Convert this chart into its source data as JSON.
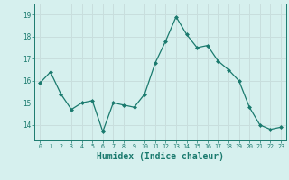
{
  "x": [
    0,
    1,
    2,
    3,
    4,
    5,
    6,
    7,
    8,
    9,
    10,
    11,
    12,
    13,
    14,
    15,
    16,
    17,
    18,
    19,
    20,
    21,
    22,
    23
  ],
  "y": [
    15.9,
    16.4,
    15.4,
    14.7,
    15.0,
    15.1,
    13.7,
    15.0,
    14.9,
    14.8,
    15.4,
    16.8,
    17.8,
    18.9,
    18.1,
    17.5,
    17.6,
    16.9,
    16.5,
    16.0,
    14.8,
    14.0,
    13.8,
    13.9
  ],
  "line_color": "#1a7a6e",
  "marker": "D",
  "marker_size": 2,
  "bg_color": "#d6f0ee",
  "grid_color": "#c8dedd",
  "tick_color": "#1a7a6e",
  "xlabel": "Humidex (Indice chaleur)",
  "xlabel_fontsize": 7,
  "ylabel_ticks": [
    14,
    15,
    16,
    17,
    18,
    19
  ],
  "ylim": [
    13.3,
    19.5
  ],
  "xlim": [
    -0.5,
    23.5
  ]
}
